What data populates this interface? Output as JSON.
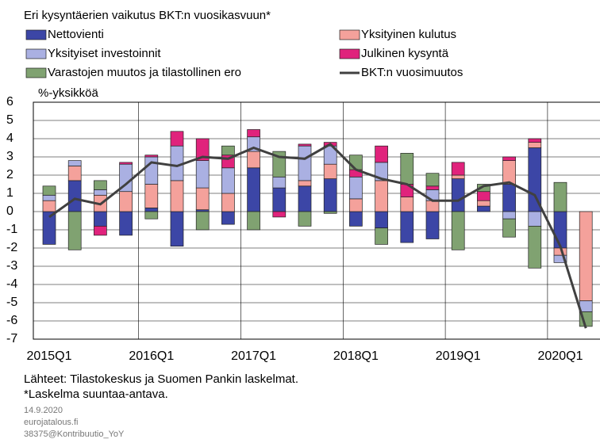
{
  "chart_data": {
    "type": "stacked_bar_line",
    "subtitle": "Eri kysyntäerien vaikutus BKT:n vuosikasvuun*",
    "y_label": "%-yksikköä",
    "categories": [
      "2015Q1",
      null,
      null,
      null,
      "2016Q1",
      null,
      null,
      null,
      "2017Q1",
      null,
      null,
      null,
      "2018Q1",
      null,
      null,
      null,
      "2019Q1",
      null,
      null,
      null,
      "2020Q1",
      null
    ],
    "series": [
      {
        "name": "Nettovienti",
        "color": "#3c46a6",
        "values": [
          -1.8,
          1.7,
          -0.8,
          -1.3,
          0.2,
          -1.9,
          0.1,
          -0.7,
          2.4,
          1.3,
          1.4,
          1.8,
          -0.8,
          -0.9,
          -1.7,
          -1.5,
          1.8,
          0.3,
          1.5,
          3.5,
          -2.0,
          0
        ]
      },
      {
        "name": "Yksityinen kulutus",
        "color": "#f4a19b",
        "values": [
          0.6,
          0.8,
          0.9,
          1.1,
          1.3,
          1.7,
          1.2,
          1.0,
          0.9,
          0,
          0.3,
          0.8,
          0.7,
          1.7,
          0.8,
          0.6,
          0.2,
          0.3,
          1.3,
          0.3,
          -0.4,
          -4.9
        ]
      },
      {
        "name": "Yksityiset investoinnit",
        "color": "#aab0e2",
        "values": [
          0.3,
          0.3,
          0.3,
          1.5,
          1.5,
          1.9,
          1.5,
          1.4,
          0.8,
          0.6,
          1.9,
          1.0,
          1.2,
          1.0,
          0,
          0.6,
          0,
          0,
          -0.4,
          -0.8,
          -0.4,
          -0.6
        ]
      },
      {
        "name": "Julkinen kysyntä",
        "color": "#e0237c",
        "values": [
          0,
          0,
          -0.5,
          0.1,
          0.1,
          0.8,
          1.2,
          0.7,
          0.4,
          -0.3,
          0.1,
          0.2,
          0.4,
          0.9,
          0.7,
          0.2,
          0.7,
          0.5,
          0.2,
          0.2,
          0,
          0
        ]
      },
      {
        "name": "Varastojen muutos ja tilastollinen ero",
        "color": "#80a271",
        "values": [
          0.5,
          -2.1,
          0.5,
          0,
          -0.4,
          0,
          -1.0,
          0.5,
          -1.0,
          1.4,
          -0.8,
          -0.1,
          0.8,
          -0.9,
          1.7,
          0.7,
          -2.1,
          0.4,
          -1.0,
          -2.3,
          1.6,
          -0.8
        ]
      }
    ],
    "line": {
      "name": "BKT:n vuosimuutos",
      "color": "#404040",
      "values": [
        -0.3,
        0.7,
        0.4,
        1.5,
        2.7,
        2.5,
        3.0,
        2.9,
        3.5,
        3.0,
        2.9,
        3.7,
        2.3,
        1.8,
        1.5,
        0.6,
        0.6,
        1.4,
        1.6,
        0.9,
        -1.9,
        -6.4
      ]
    },
    "ylim": [
      -7,
      6
    ],
    "yticks": [
      -7,
      -6,
      -5,
      -4,
      -3,
      -2,
      -1,
      0,
      1,
      2,
      3,
      4,
      5,
      6
    ],
    "grid": true,
    "notes": [
      "Lähteet: Tilastokeskus ja Suomen Pankin laskelmat.",
      "*Laskelma suuntaa-antava."
    ],
    "footer": [
      "14.9.2020",
      "eurojatalous.fi",
      "38375@Kontribuutio_YoY"
    ]
  }
}
